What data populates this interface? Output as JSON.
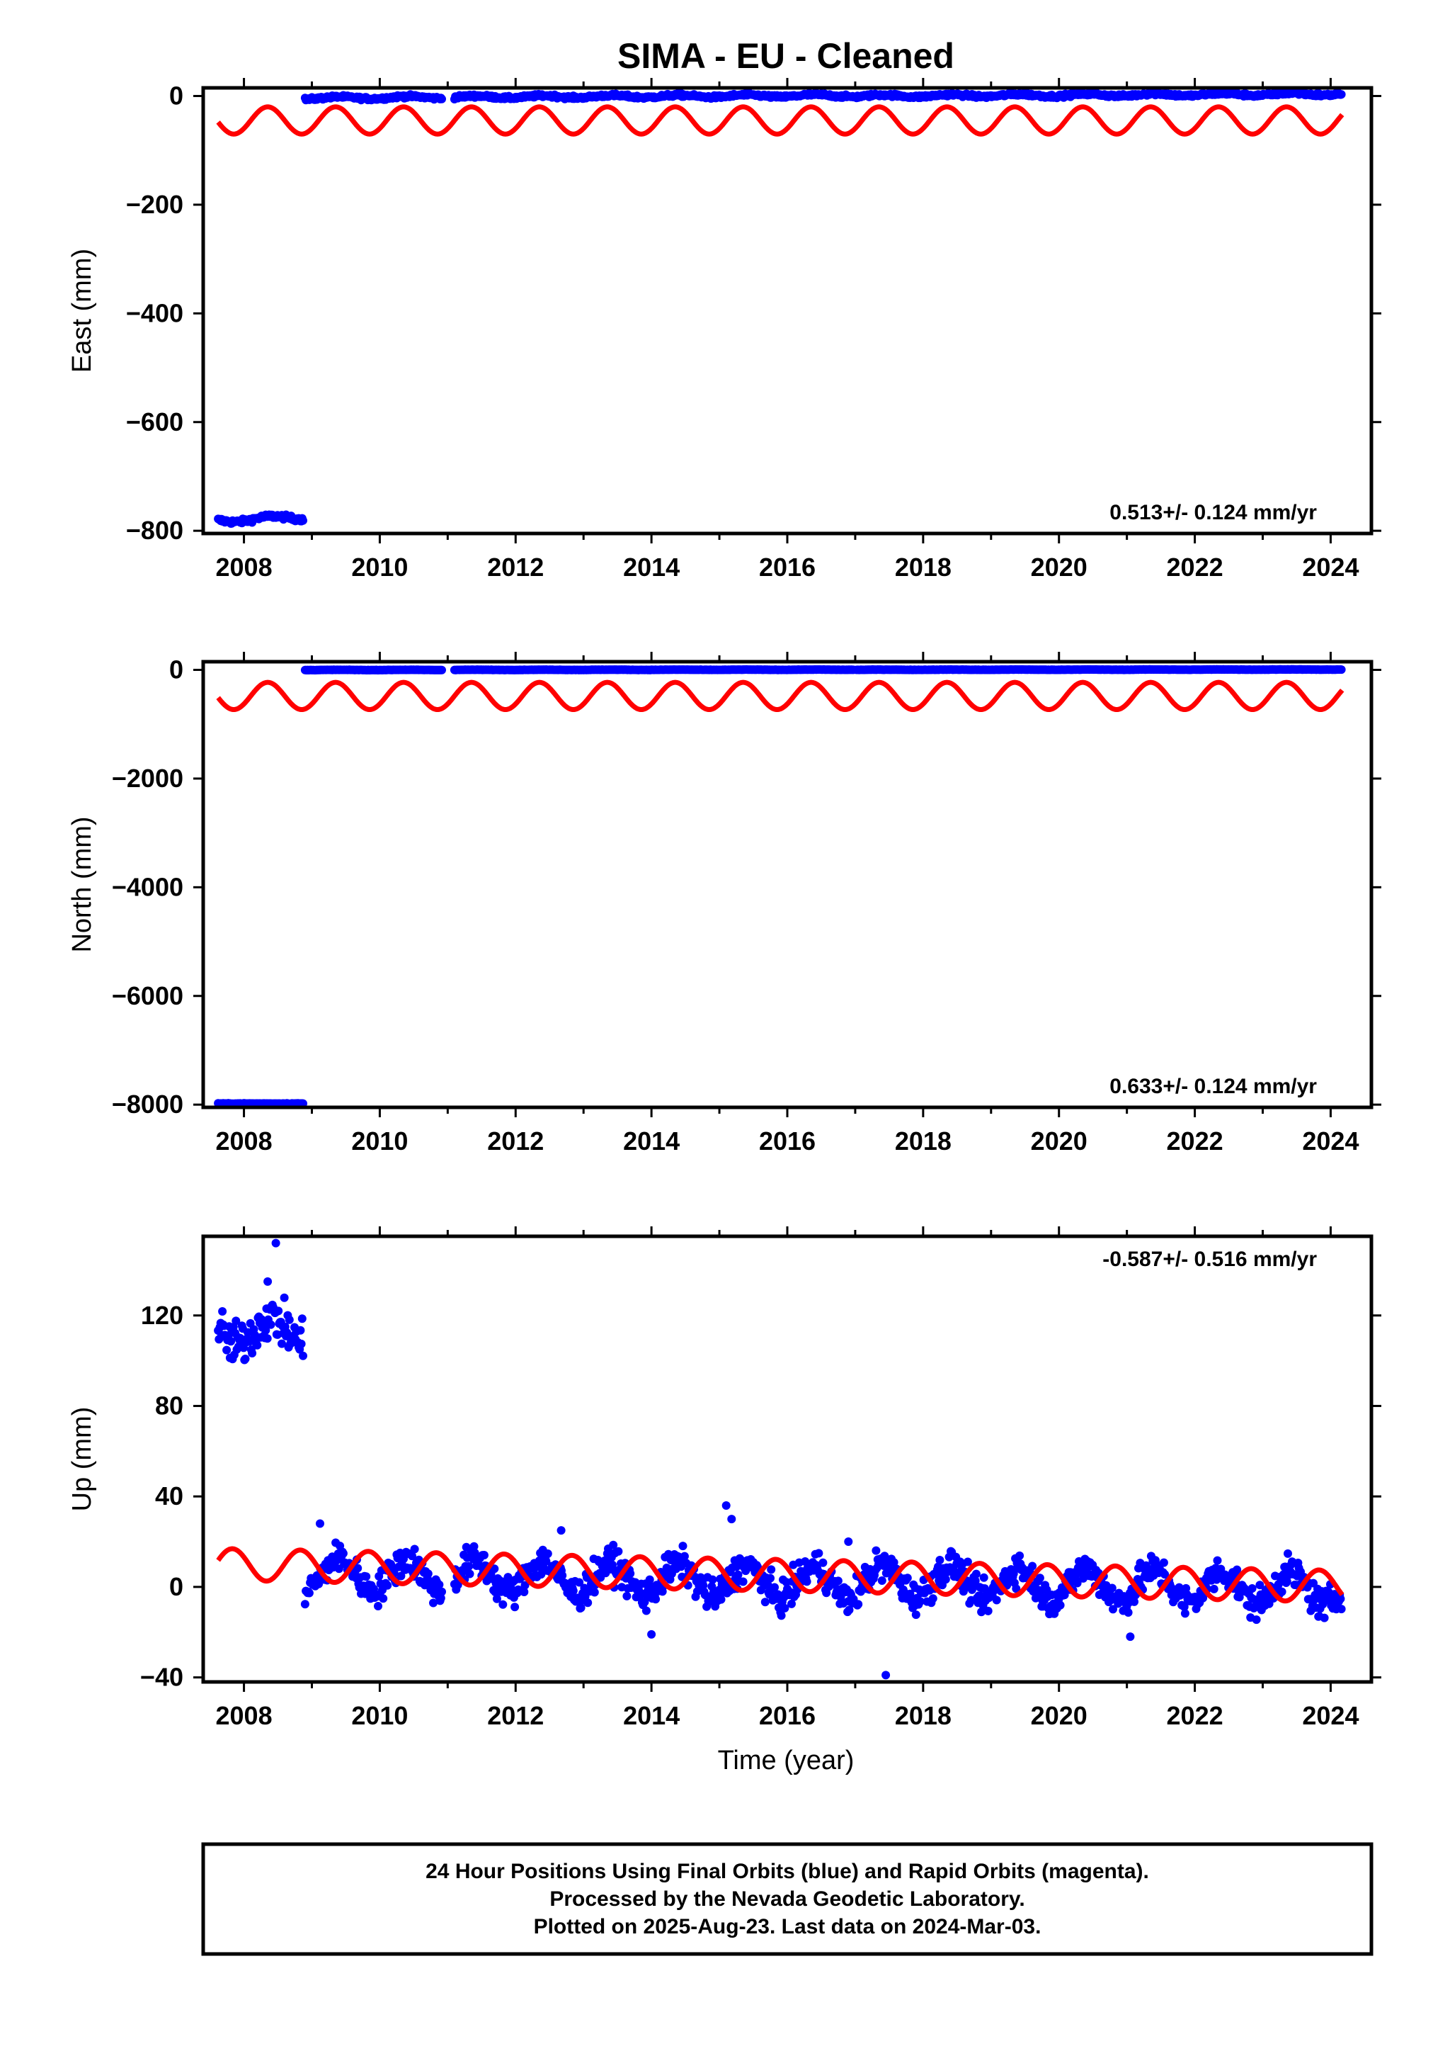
{
  "title": "SIMA  - EU - Cleaned",
  "xlabel": "Time (year)",
  "caption": [
    "24 Hour Positions Using Final Orbits (blue) and Rapid Orbits (magenta).",
    "Processed by the Nevada Geodetic Laboratory.",
    "Plotted on 2025-Aug-23. Last data on 2024-Mar-03."
  ],
  "colors": {
    "data": "#0000ff",
    "model": "#ff0000",
    "frame": "#000000"
  },
  "chart_data": [
    {
      "type": "scatter",
      "panel": "east",
      "ylabel": "East (mm)",
      "rate_label": "0.513+/- 0.124 mm/yr",
      "xlim": [
        2007.4,
        2024.6
      ],
      "ylim": [
        -805,
        15
      ],
      "yticks": [
        0,
        -200,
        -400,
        -600,
        -800
      ],
      "ytick_labels": [
        "0",
        "−200",
        "−400",
        "−600",
        "−800"
      ],
      "xticks": [
        2008,
        2010,
        2012,
        2014,
        2016,
        2018,
        2020,
        2022,
        2024
      ],
      "series": [
        {
          "role": "final-orbit-positions",
          "segments": [
            {
              "x_range": [
                2007.62,
                2008.88
              ],
              "baseline": -781,
              "trend": 5,
              "annual_amp": 4,
              "scatter": 3
            },
            {
              "x_range": [
                2008.9,
                2010.92
              ],
              "baseline": -4,
              "trend": 1.0,
              "annual_amp": 2,
              "scatter": 2
            },
            {
              "x_range": [
                2011.1,
                2016.98
              ],
              "baseline": -2,
              "trend": 0.5,
              "annual_amp": 2,
              "scatter": 2
            },
            {
              "x_range": [
                2017.02,
                2024.17
              ],
              "baseline": 0,
              "trend": 0.513,
              "annual_amp": 2,
              "scatter": 2
            }
          ]
        },
        {
          "role": "model-curve",
          "x_range": [
            2007.62,
            2024.17
          ],
          "center": -45,
          "annual_amp": 25,
          "phase": 0.1
        }
      ]
    },
    {
      "type": "scatter",
      "panel": "north",
      "ylabel": "North (mm)",
      "rate_label": "0.633+/- 0.124 mm/yr",
      "xlim": [
        2007.4,
        2024.6
      ],
      "ylim": [
        -8050,
        150
      ],
      "yticks": [
        0,
        -2000,
        -4000,
        -6000,
        -8000
      ],
      "ytick_labels": [
        "0",
        "−2000",
        "−4000",
        "−6000",
        "−8000"
      ],
      "xticks": [
        2008,
        2010,
        2012,
        2014,
        2016,
        2018,
        2020,
        2022,
        2024
      ],
      "series": [
        {
          "role": "final-orbit-positions",
          "segments": [
            {
              "x_range": [
                2007.62,
                2008.88
              ],
              "baseline": -7980,
              "trend": 0,
              "annual_amp": 0,
              "scatter": 4
            },
            {
              "x_range": [
                2008.9,
                2010.92
              ],
              "baseline": -2,
              "trend": 0.6,
              "annual_amp": 2,
              "scatter": 2
            },
            {
              "x_range": [
                2011.1,
                2016.98
              ],
              "baseline": 0,
              "trend": 0.6,
              "annual_amp": 2,
              "scatter": 2
            },
            {
              "x_range": [
                2017.02,
                2024.17
              ],
              "baseline": 2,
              "trend": 0.633,
              "annual_amp": 2,
              "scatter": 2
            }
          ]
        },
        {
          "role": "model-curve",
          "x_range": [
            2007.62,
            2024.17
          ],
          "center": -480,
          "annual_amp": 250,
          "phase": 0.1
        }
      ]
    },
    {
      "type": "scatter",
      "panel": "up",
      "ylabel": "Up (mm)",
      "rate_label": "-0.587+/- 0.516 mm/yr",
      "xlim": [
        2007.4,
        2024.6
      ],
      "ylim": [
        -42,
        155
      ],
      "yticks": [
        -40,
        0,
        40,
        80,
        120
      ],
      "ytick_labels": [
        "−40",
        "0",
        "40",
        "80",
        "120"
      ],
      "xticks": [
        2008,
        2010,
        2012,
        2014,
        2016,
        2018,
        2020,
        2022,
        2024
      ],
      "series": [
        {
          "role": "final-orbit-positions",
          "segments": [
            {
              "x_range": [
                2007.62,
                2008.88
              ],
              "baseline": 113,
              "trend": 0,
              "annual_amp": 6,
              "scatter": 7
            },
            {
              "x_range": [
                2008.9,
                2010.92
              ],
              "baseline": 6,
              "trend": -0.587,
              "annual_amp": 7,
              "scatter": 5
            },
            {
              "x_range": [
                2011.1,
                2016.98
              ],
              "baseline": 5,
              "trend": -0.587,
              "annual_amp": 7,
              "scatter": 5
            },
            {
              "x_range": [
                2017.02,
                2024.17
              ],
              "baseline": 3,
              "trend": -0.587,
              "annual_amp": 7,
              "scatter": 5
            }
          ],
          "outliers": [
            {
              "x": 2008.47,
              "y": 152
            },
            {
              "x": 2008.35,
              "y": 135
            },
            {
              "x": 2009.12,
              "y": 28
            },
            {
              "x": 2012.67,
              "y": 25
            },
            {
              "x": 2014.0,
              "y": -21
            },
            {
              "x": 2015.1,
              "y": 36
            },
            {
              "x": 2015.18,
              "y": 30
            },
            {
              "x": 2016.9,
              "y": 20
            },
            {
              "x": 2017.45,
              "y": -39
            },
            {
              "x": 2021.05,
              "y": -22
            }
          ]
        },
        {
          "role": "model-curve",
          "x_range": [
            2007.62,
            2024.17
          ],
          "center": 10,
          "trend": -0.587,
          "annual_amp": 7,
          "phase": 0.58
        }
      ]
    }
  ]
}
